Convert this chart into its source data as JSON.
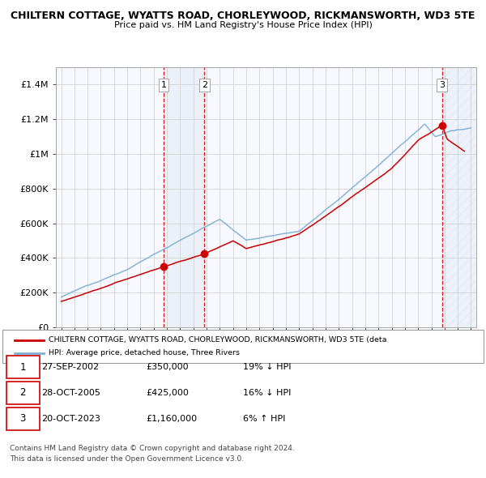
{
  "title": "CHILTERN COTTAGE, WYATTS ROAD, CHORLEYWOOD, RICKMANSWORTH, WD3 5TE",
  "subtitle": "Price paid vs. HM Land Registry's House Price Index (HPI)",
  "legend_red": "CHILTERN COTTAGE, WYATTS ROAD, CHORLEYWOOD, RICKMANSWORTH, WD3 5TE (deta",
  "legend_blue": "HPI: Average price, detached house, Three Rivers",
  "footer1": "Contains HM Land Registry data © Crown copyright and database right 2024.",
  "footer2": "This data is licensed under the Open Government Licence v3.0.",
  "transactions": [
    {
      "num": 1,
      "date": "27-SEP-2002",
      "price": "£350,000",
      "hpi": "19% ↓ HPI",
      "year": 2002.75
    },
    {
      "num": 2,
      "date": "28-OCT-2005",
      "price": "£425,000",
      "hpi": "16% ↓ HPI",
      "year": 2005.83
    },
    {
      "num": 3,
      "date": "20-OCT-2023",
      "price": "£1,160,000",
      "hpi": "6% ↑ HPI",
      "year": 2023.8
    }
  ],
  "transaction_values": [
    350000,
    425000,
    1160000
  ],
  "ylim": [
    0,
    1500000
  ],
  "yticks": [
    0,
    200000,
    400000,
    600000,
    800000,
    1000000,
    1200000,
    1400000
  ],
  "ytick_labels": [
    "£0",
    "£200K",
    "£400K",
    "£600K",
    "£800K",
    "£1M",
    "£1.2M",
    "£1.4M"
  ],
  "xlim_left": 1994.6,
  "xlim_right": 2026.4,
  "red_color": "#cc0000",
  "blue_color": "#7bafd4",
  "shaded_color": "#d6e4f0",
  "hatch_color": "#d6e4f0",
  "vline_color": "#cc0000",
  "grid_color": "#cccccc",
  "bg_color": "#f8f8ff"
}
